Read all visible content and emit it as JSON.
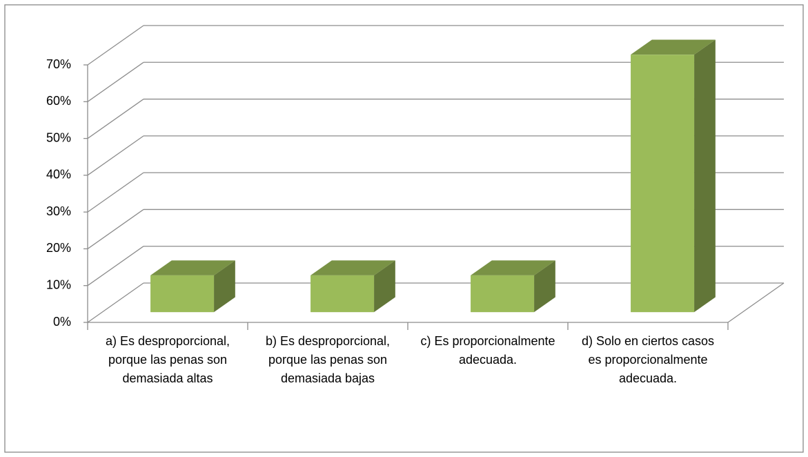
{
  "chart_data": {
    "type": "bar3d",
    "categories": [
      "a) Es desproporcional, porque las penas son demasiada altas",
      "b) Es desproporcional, porque las penas son demasiada bajas",
      "c) Es proporcionalmente adecuada.",
      "d) Solo en ciertos casos es proporcionalmente adecuada."
    ],
    "values": [
      10,
      10,
      10,
      70
    ],
    "color": "#9bbb59",
    "ylim": [
      0,
      70
    ],
    "yticks": [
      {
        "value": 0,
        "label": "0%"
      },
      {
        "value": 10,
        "label": "10%"
      },
      {
        "value": 20,
        "label": "20%"
      },
      {
        "value": 30,
        "label": "30%"
      },
      {
        "value": 40,
        "label": "40%"
      },
      {
        "value": 50,
        "label": "50%"
      },
      {
        "value": 60,
        "label": "60%"
      },
      {
        "value": 70,
        "label": "70%"
      }
    ],
    "grid": true
  }
}
